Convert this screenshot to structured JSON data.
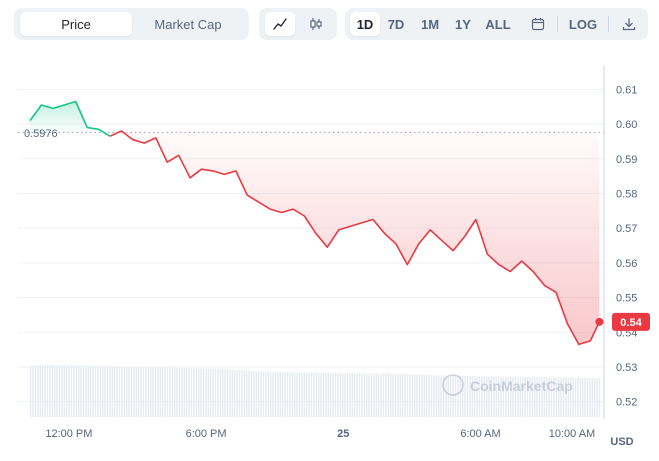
{
  "toolbar": {
    "type_tabs": [
      {
        "label": "Price",
        "active": true
      },
      {
        "label": "Market Cap",
        "active": false
      }
    ],
    "chart_types": [
      {
        "icon": "line-chart-icon",
        "active": true
      },
      {
        "icon": "candlestick-icon",
        "active": false
      }
    ],
    "ranges": [
      {
        "label": "1D",
        "active": true
      },
      {
        "label": "7D",
        "active": false
      },
      {
        "label": "1M",
        "active": false
      },
      {
        "label": "1Y",
        "active": false
      },
      {
        "label": "ALL",
        "active": false
      }
    ],
    "calendar_icon": "calendar-icon",
    "log_label": "LOG",
    "download_icon": "download-icon"
  },
  "watermark": "CoinMarketCap",
  "colors": {
    "up": "#16c784",
    "down": "#ea3943",
    "grid": "#eff2f5",
    "text": "#58667e",
    "volume": "#e7eaf0"
  },
  "chart_data": {
    "type": "line",
    "currency_label": "USD",
    "open_price_label": "0.5976",
    "current_price_label": "0.54",
    "open_price": 0.5976,
    "current_price": 0.543,
    "y_ticks": [
      "0.61",
      "0.60",
      "0.59",
      "0.58",
      "0.57",
      "0.56",
      "0.55",
      "0.54",
      "0.53",
      "0.52"
    ],
    "x_ticks": [
      "12:00 PM",
      "6:00 PM",
      "25",
      "6:00 AM",
      "10:00 AM"
    ],
    "x_tick_hours": [
      0,
      6,
      12,
      18,
      22
    ],
    "ylim": [
      0.515,
      0.615
    ],
    "xlim": [
      -2.4,
      23.4
    ],
    "series": [
      {
        "x": [
          -1.7,
          -1.2,
          -0.7,
          -0.2,
          0.3,
          0.8,
          1.3,
          1.8,
          2.3,
          2.8,
          3.3,
          3.8,
          4.3,
          4.8,
          5.3,
          5.8,
          6.3,
          6.8,
          7.3,
          7.8,
          8.3,
          8.8,
          9.3,
          9.8,
          10.3,
          10.8,
          11.3,
          11.8,
          12.3,
          12.8,
          13.3,
          13.8,
          14.3,
          14.8,
          15.3,
          15.8,
          16.3,
          16.8,
          17.3,
          17.8,
          18.3,
          18.8,
          19.3,
          19.8,
          20.3,
          20.8,
          21.3,
          21.8,
          22.3,
          22.8,
          23.2
        ],
        "y": [
          0.601,
          0.6055,
          0.6045,
          0.6055,
          0.6065,
          0.599,
          0.5985,
          0.5965,
          0.598,
          0.5955,
          0.5945,
          0.596,
          0.589,
          0.591,
          0.5845,
          0.587,
          0.5865,
          0.5855,
          0.5865,
          0.5795,
          0.5775,
          0.5755,
          0.5745,
          0.5755,
          0.5735,
          0.5685,
          0.5645,
          0.5695,
          0.5705,
          0.5715,
          0.5725,
          0.5685,
          0.5655,
          0.5595,
          0.5655,
          0.5695,
          0.5665,
          0.5635,
          0.5675,
          0.5725,
          0.5625,
          0.5595,
          0.5575,
          0.5605,
          0.5575,
          0.5535,
          0.5515,
          0.5425,
          0.5365,
          0.5375,
          0.543
        ]
      }
    ],
    "volume_x": [
      -1.7,
      0.3,
      2.3,
      4.3,
      6.3,
      8.3,
      10.3,
      12.3,
      14.3,
      16.3,
      18.3,
      20.3,
      22.3,
      23.2
    ],
    "volume_level": [
      1.0,
      0.99,
      0.97,
      0.95,
      0.93,
      0.88,
      0.85,
      0.84,
      0.83,
      0.8,
      0.78,
      0.77,
      0.75,
      0.75
    ]
  }
}
